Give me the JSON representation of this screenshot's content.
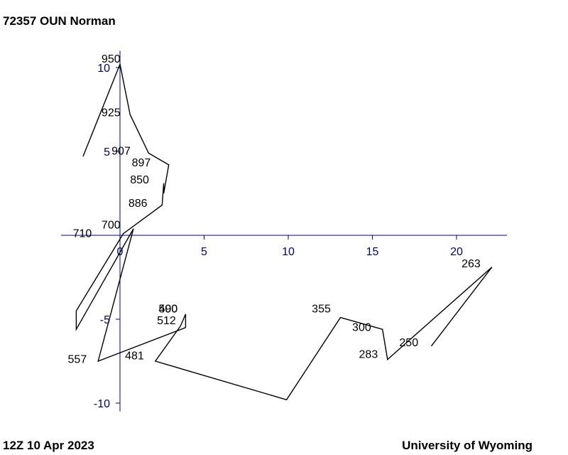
{
  "header": {
    "title": "72357 OUN Norman"
  },
  "footer": {
    "time": "12Z 10 Apr 2023",
    "source": "University of Wyoming"
  },
  "colors": {
    "axis": "#000080",
    "trace": "#000000",
    "background": "#ffffff"
  },
  "chart_data": {
    "type": "line",
    "title": "72357 OUN Norman",
    "xlabel": "",
    "ylabel": "",
    "xlim": [
      -3.5,
      23
    ],
    "ylim": [
      -10.5,
      11
    ],
    "x_ticks": [
      0,
      5,
      10,
      15,
      20
    ],
    "y_ticks": [
      -10,
      -5,
      5,
      10
    ],
    "x_tick_labels": [
      "0",
      "5",
      "10",
      "15",
      "20"
    ],
    "y_tick_labels": [
      "-10",
      "-5",
      "5",
      "10"
    ],
    "grid": false,
    "series": [
      {
        "points": [
          [
            -2.2,
            4.7
          ],
          [
            0.0,
            10.2
          ],
          [
            0.6,
            7.2
          ],
          [
            1.7,
            4.9
          ],
          [
            2.9,
            4.2
          ],
          [
            2.6,
            2.5
          ],
          [
            2.6,
            3.1
          ],
          [
            2.5,
            1.8
          ],
          [
            0.2,
            0.1
          ],
          [
            -2.6,
            -4.5
          ],
          [
            -2.6,
            -5.6
          ],
          [
            0.8,
            0.4
          ],
          [
            -1.3,
            -7.5
          ],
          [
            3.9,
            -5.5
          ],
          [
            3.9,
            -4.7
          ],
          [
            3.6,
            -5.4
          ],
          [
            2.1,
            -7.5
          ],
          [
            9.9,
            -9.8
          ],
          [
            13.1,
            -4.9
          ],
          [
            15.6,
            -5.6
          ],
          [
            15.9,
            -7.4
          ],
          [
            22.1,
            -1.9
          ],
          [
            18.5,
            -6.6
          ]
        ]
      }
    ],
    "labels": [
      {
        "text": "950",
        "x": -1.1,
        "y": 10.3
      },
      {
        "text": "925",
        "x": -1.1,
        "y": 7.1
      },
      {
        "text": "907",
        "x": -0.5,
        "y": 4.8
      },
      {
        "text": "897",
        "x": 0.7,
        "y": 4.1
      },
      {
        "text": "850",
        "x": 0.6,
        "y": 3.1
      },
      {
        "text": "886",
        "x": 0.5,
        "y": 1.7
      },
      {
        "text": "700",
        "x": -1.1,
        "y": 0.4
      },
      {
        "text": "710",
        "x": -2.8,
        "y": -0.1
      },
      {
        "text": "557",
        "x": -3.1,
        "y": -7.6
      },
      {
        "text": "481",
        "x": 0.3,
        "y": -7.4
      },
      {
        "text": "500",
        "x": 2.3,
        "y": -4.6
      },
      {
        "text": "490",
        "x": 2.3,
        "y": -4.6
      },
      {
        "text": "512",
        "x": 2.2,
        "y": -5.3
      },
      {
        "text": "355",
        "x": 11.4,
        "y": -4.6
      },
      {
        "text": "300",
        "x": 13.8,
        "y": -5.7
      },
      {
        "text": "283",
        "x": 14.2,
        "y": -7.3
      },
      {
        "text": "250",
        "x": 16.6,
        "y": -6.6
      },
      {
        "text": "263",
        "x": 20.3,
        "y": -1.9
      }
    ]
  }
}
